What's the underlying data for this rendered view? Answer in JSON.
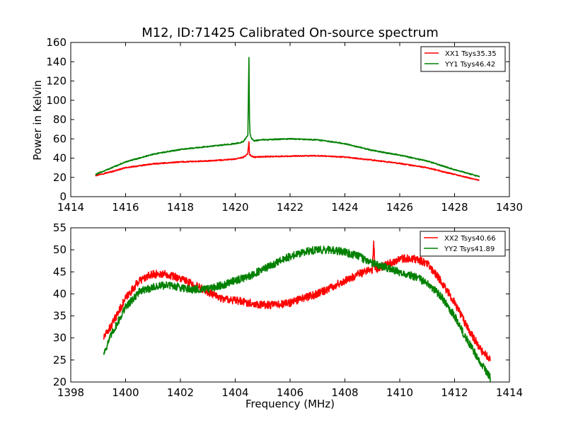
{
  "chart_data": [
    {
      "type": "line",
      "title": "M12, ID:71425 Calibrated On-source spectrum",
      "xlabel": "",
      "ylabel": "Power in Kelvin",
      "xlim": [
        1414,
        1430
      ],
      "ylim": [
        0,
        160
      ],
      "xticks": [
        "1414",
        "1416",
        "1418",
        "1420",
        "1422",
        "1424",
        "1426",
        "1428",
        "1430"
      ],
      "yticks": [
        "0",
        "20",
        "40",
        "60",
        "80",
        "100",
        "120",
        "140",
        "160"
      ],
      "legend": "top-right",
      "noise": 0.6,
      "series": [
        {
          "name": "XX1 Tsys35.35",
          "color": "#ff0000",
          "x": [
            1414.9,
            1415.5,
            1416.0,
            1417.0,
            1418.0,
            1419.0,
            1420.0,
            1420.3,
            1420.45,
            1420.5,
            1420.52,
            1420.6,
            1420.7,
            1421.0,
            1422.0,
            1423.0,
            1424.0,
            1425.0,
            1426.0,
            1427.0,
            1428.0,
            1428.9
          ],
          "y": [
            22,
            26,
            30,
            34,
            36,
            37,
            39,
            41,
            44,
            57,
            44,
            42,
            41,
            41.5,
            42,
            42.5,
            41,
            38,
            34.5,
            30,
            23,
            17
          ]
        },
        {
          "name": "YY1 Tsys46.42",
          "color": "#008000",
          "x": [
            1414.9,
            1415.5,
            1416.0,
            1417.0,
            1418.0,
            1419.0,
            1420.0,
            1420.3,
            1420.46,
            1420.5,
            1420.52,
            1420.54,
            1420.6,
            1420.7,
            1421.0,
            1422.0,
            1423.0,
            1424.0,
            1425.0,
            1426.0,
            1427.0,
            1428.0,
            1428.9
          ],
          "y": [
            23,
            30,
            36,
            44,
            49,
            52,
            55,
            57,
            64,
            144,
            80,
            65,
            60,
            58,
            59,
            60,
            59,
            55,
            48,
            43,
            37,
            28,
            21
          ]
        }
      ]
    },
    {
      "type": "line",
      "title": "",
      "xlabel": "Frequency (MHz)",
      "ylabel": "",
      "xlim": [
        1398,
        1414
      ],
      "ylim": [
        20,
        55
      ],
      "xticks": [
        "1398",
        "1400",
        "1402",
        "1404",
        "1406",
        "1408",
        "1410",
        "1412",
        "1414"
      ],
      "yticks": [
        "20",
        "25",
        "30",
        "35",
        "40",
        "45",
        "50",
        "55"
      ],
      "legend": "top-right",
      "noise": 0.9,
      "series": [
        {
          "name": "XX2 Tsys40.66",
          "color": "#ff0000",
          "x": [
            1399.2,
            1399.5,
            1400.0,
            1400.5,
            1401.0,
            1401.5,
            1402.0,
            1402.5,
            1403.0,
            1403.5,
            1404.0,
            1404.5,
            1405.0,
            1405.5,
            1406.0,
            1406.5,
            1407.0,
            1407.5,
            1408.0,
            1408.5,
            1409.0,
            1409.05,
            1409.1,
            1409.5,
            1410.0,
            1410.5,
            1411.0,
            1411.5,
            1412.0,
            1412.5,
            1413.0,
            1413.3
          ],
          "y": [
            30,
            33,
            39,
            43,
            44.5,
            44.5,
            43.5,
            42,
            40.5,
            39,
            38.5,
            38,
            37.5,
            37.5,
            38,
            39,
            40,
            41.5,
            43,
            44.5,
            45.5,
            52,
            45.5,
            46.5,
            48,
            48,
            47,
            43,
            38,
            32,
            27,
            25
          ]
        },
        {
          "name": "YY2 Tsys41.89",
          "color": "#008000",
          "x": [
            1399.2,
            1399.5,
            1400.0,
            1400.5,
            1401.0,
            1401.5,
            1402.0,
            1402.5,
            1403.0,
            1403.5,
            1404.0,
            1404.5,
            1405.0,
            1405.5,
            1406.0,
            1406.5,
            1407.0,
            1407.5,
            1408.0,
            1408.5,
            1409.0,
            1409.5,
            1410.0,
            1410.5,
            1411.0,
            1411.5,
            1412.0,
            1412.5,
            1413.0,
            1413.3
          ],
          "y": [
            26.5,
            31,
            37,
            40.5,
            41.5,
            42,
            41.5,
            41,
            41,
            42,
            43,
            44,
            45.5,
            47,
            48.5,
            49.5,
            50,
            50,
            49.5,
            48.5,
            47,
            46,
            45,
            44,
            42.5,
            39.5,
            35,
            29,
            24,
            21
          ]
        }
      ]
    }
  ]
}
